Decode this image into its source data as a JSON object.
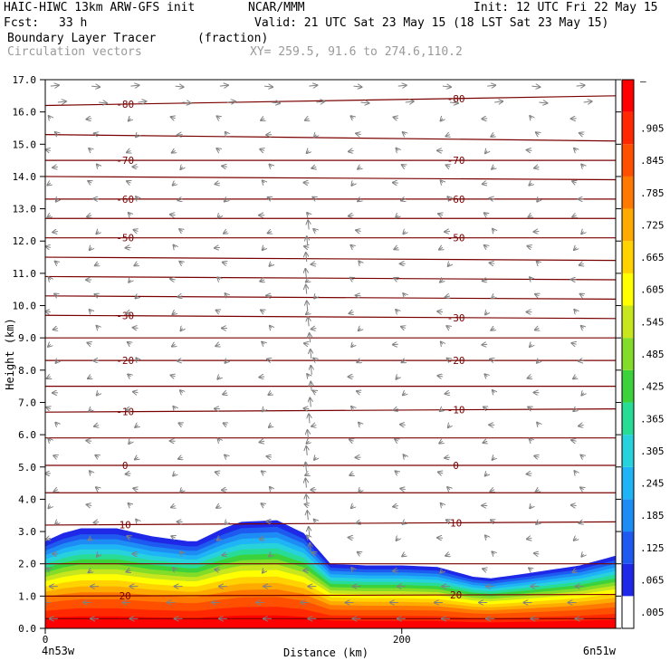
{
  "header": {
    "model": "HAIC-HIWC 13km ARW-GFS init",
    "org": "NCAR/MMM",
    "init": "Init: 12 UTC Fri 22 May 15",
    "fcst_label": "Fcst:",
    "fcst_value": "33 h",
    "valid": "Valid: 21 UTC Sat 23 May 15 (18 LST Sat 23 May 15)",
    "field": "Boundary Layer Tracer",
    "units": "(fraction)",
    "overlay": "Circulation vectors",
    "xy": "XY= 259.5, 91.6 to 274.6,110.2"
  },
  "chart_data": {
    "type": "heatmap",
    "xlabel": "Distance (km)",
    "ylabel": "Height (km)",
    "xlim": [
      0,
      320
    ],
    "ylim": [
      0,
      17
    ],
    "x_ticks": [
      0,
      200
    ],
    "x_tick_labels": [
      "0",
      "200"
    ],
    "x_endpoint_labels": [
      "4n53w",
      "6n51w"
    ],
    "y_ticks": [
      0,
      1,
      2,
      3,
      4,
      5,
      6,
      7,
      8,
      9,
      10,
      11,
      12,
      13,
      14,
      15,
      16,
      17
    ],
    "y_tick_labels": [
      "0.0",
      "1.0",
      "2.0",
      "3.0",
      "4.0",
      "5.0",
      "6.0",
      "7.0",
      "8.0",
      "9.0",
      "10.0",
      "11.0",
      "12.0",
      "13.0",
      "14.0",
      "15.0",
      "16.0",
      "17.0"
    ],
    "colorbar": {
      "labels": [
        ".005",
        ".065",
        ".125",
        ".185",
        ".245",
        ".305",
        ".365",
        ".425",
        ".485",
        ".545",
        ".605",
        ".665",
        ".725",
        ".785",
        ".845",
        ".905",
        "–"
      ],
      "colors": [
        "#ffffff",
        "#1e28e6",
        "#1e5af0",
        "#1e8cf5",
        "#1eb4f5",
        "#28d2dc",
        "#28dc96",
        "#3cd23c",
        "#82dc28",
        "#c8e61e",
        "#ffff00",
        "#ffd200",
        "#ffaa00",
        "#ff7800",
        "#ff5000",
        "#ff2800",
        "#ff0000"
      ]
    },
    "bl_top_km": {
      "x": [
        0,
        10,
        20,
        40,
        60,
        80,
        85,
        100,
        110,
        130,
        145,
        160,
        180,
        200,
        220,
        240,
        250,
        270,
        300,
        320
      ],
      "y": [
        2.7,
        2.95,
        3.1,
        3.1,
        2.85,
        2.7,
        2.7,
        3.1,
        3.3,
        3.35,
        2.95,
        2.0,
        1.95,
        1.95,
        1.9,
        1.6,
        1.55,
        1.7,
        1.95,
        2.25
      ]
    },
    "contours": [
      {
        "label": "-80",
        "y": [
          16.2,
          16.5
        ]
      },
      {
        "label": "",
        "y": [
          15.3,
          15.1
        ]
      },
      {
        "label": "-70",
        "y": [
          14.5,
          14.5
        ]
      },
      {
        "label": "",
        "y": [
          14.0,
          13.9
        ]
      },
      {
        "label": "-60",
        "y": [
          13.3,
          13.3
        ]
      },
      {
        "label": "",
        "y": [
          12.7,
          12.7
        ]
      },
      {
        "label": "-50",
        "y": [
          12.1,
          12.1
        ]
      },
      {
        "label": "",
        "y": [
          11.5,
          11.4
        ]
      },
      {
        "label": "",
        "y": [
          10.9,
          10.8
        ]
      },
      {
        "label": "",
        "y": [
          10.3,
          10.2
        ]
      },
      {
        "label": "-30",
        "y": [
          9.7,
          9.6
        ]
      },
      {
        "label": "",
        "y": [
          9.0,
          9.0
        ]
      },
      {
        "label": "-20",
        "y": [
          8.3,
          8.3
        ]
      },
      {
        "label": "",
        "y": [
          7.5,
          7.5
        ]
      },
      {
        "label": "-10",
        "y": [
          6.7,
          6.8
        ]
      },
      {
        "label": "",
        "y": [
          5.9,
          5.9
        ]
      },
      {
        "label": "0",
        "y": [
          5.05,
          5.05
        ]
      },
      {
        "label": "",
        "y": [
          4.2,
          4.2
        ]
      },
      {
        "label": "10",
        "y": [
          3.2,
          3.3
        ]
      },
      {
        "label": "",
        "y": [
          2.0,
          2.0
        ]
      },
      {
        "label": "20",
        "y": [
          1.0,
          1.05
        ]
      },
      {
        "label": "",
        "y": [
          0.3,
          0.3
        ]
      }
    ],
    "vector_columns_km": [
      5,
      28,
      50,
      75,
      100,
      125,
      150,
      175,
      200,
      225,
      250,
      275,
      300
    ]
  }
}
